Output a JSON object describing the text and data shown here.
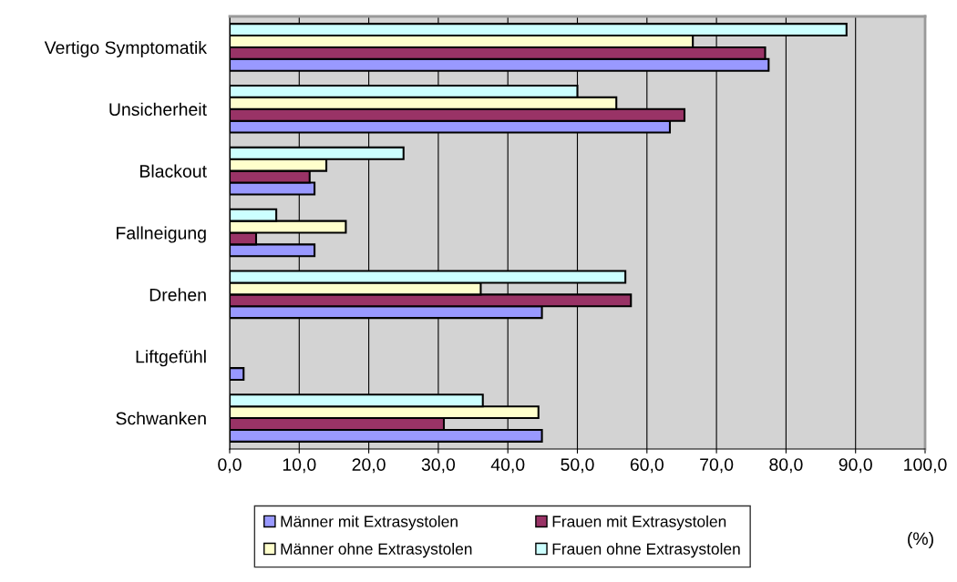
{
  "chart_data": {
    "type": "bar",
    "orientation": "horizontal",
    "xlabel": "(%)",
    "categories": [
      "Vertigo Symptomatik",
      "Unsicherheit",
      "Blackout",
      "Fallneigung",
      "Drehen",
      "Liftgefühl",
      "Schwanken"
    ],
    "series": [
      {
        "name": "Männer mit Extrasystolen",
        "color": "#9999ff",
        "values": [
          77.5,
          63.3,
          12.2,
          12.2,
          44.9,
          2.0,
          44.9
        ]
      },
      {
        "name": "Frauen mit Extrasystolen",
        "color": "#993366",
        "values": [
          77.0,
          65.4,
          11.5,
          3.8,
          57.7,
          null,
          30.8
        ]
      },
      {
        "name": "Männer ohne Extrasystolen",
        "color": "#ffffcc",
        "values": [
          66.6,
          55.6,
          13.9,
          16.7,
          36.1,
          null,
          44.4
        ]
      },
      {
        "name": "Frauen ohne Extrasystolen",
        "color": "#ccffff",
        "values": [
          88.7,
          50.0,
          25.0,
          6.7,
          56.9,
          null,
          36.4
        ]
      }
    ],
    "xlim": [
      0,
      100
    ],
    "xticks": [
      {
        "value": 0,
        "label": "0,0"
      },
      {
        "value": 10,
        "label": "10,0"
      },
      {
        "value": 20,
        "label": "20,0"
      },
      {
        "value": 30,
        "label": "30,0"
      },
      {
        "value": 40,
        "label": "40,0"
      },
      {
        "value": 50,
        "label": "50,0"
      },
      {
        "value": 60,
        "label": "60,0"
      },
      {
        "value": 70,
        "label": "70,0"
      },
      {
        "value": 80,
        "label": "80,0"
      },
      {
        "value": 90,
        "label": "90,0"
      },
      {
        "value": 100,
        "label": "100,0"
      }
    ],
    "grid": "x",
    "legend": "bottom"
  }
}
